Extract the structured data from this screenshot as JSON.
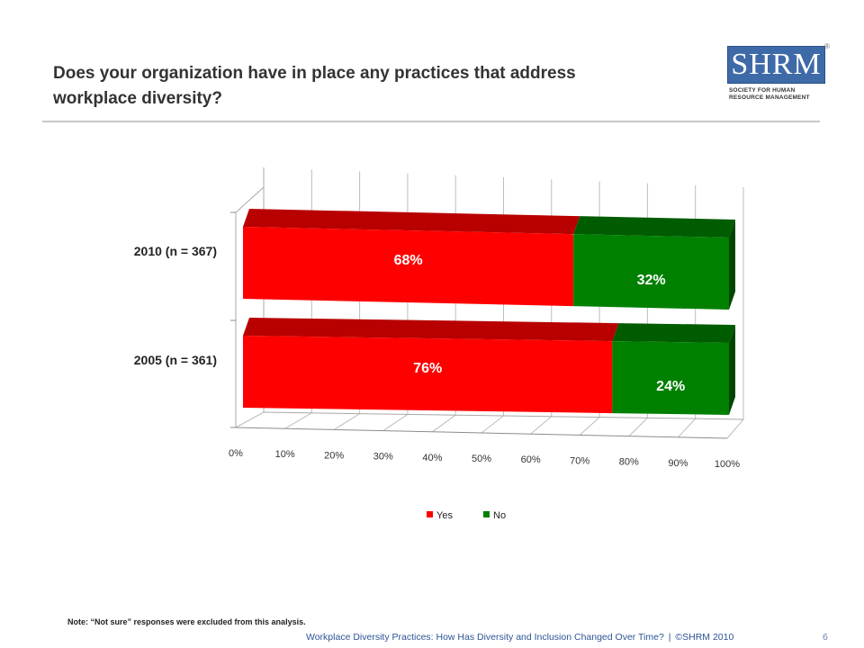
{
  "slide": {
    "title": "Does your organization have in place any practices that address\nworkplace diversity?",
    "note": "Note: “Not sure” responses were excluded from this analysis.",
    "footer_text": "Workplace Diversity Practices: How Has Diversity and Inclusion Changed Over Time?",
    "footer_separator": "|",
    "footer_copyright": "©SHRM 2010",
    "page_number": "6"
  },
  "logo": {
    "letters": "SHRM",
    "registered": "®",
    "subtitle_line1": "SOCIETY FOR HUMAN",
    "subtitle_line2": "RESOURCE MANAGEMENT",
    "color": "#3f6aa8"
  },
  "chart_data": {
    "type": "bar",
    "orientation": "horizontal",
    "stacked": true,
    "style": "3d",
    "categories": [
      "2010 (n = 367)",
      "2005 (n = 361)"
    ],
    "series": [
      {
        "name": "Yes",
        "values": [
          68,
          76
        ],
        "color": "#ff0000"
      },
      {
        "name": "No",
        "values": [
          32,
          24
        ],
        "color": "#008000"
      }
    ],
    "value_suffix": "%",
    "xlim": [
      0,
      100
    ],
    "xticks": [
      0,
      10,
      20,
      30,
      40,
      50,
      60,
      70,
      80,
      90,
      100
    ],
    "tick_labels": [
      "0%",
      "10%",
      "20%",
      "30%",
      "40%",
      "50%",
      "60%",
      "70%",
      "80%",
      "90%",
      "100%"
    ],
    "grid": true,
    "legend_position": "bottom"
  }
}
